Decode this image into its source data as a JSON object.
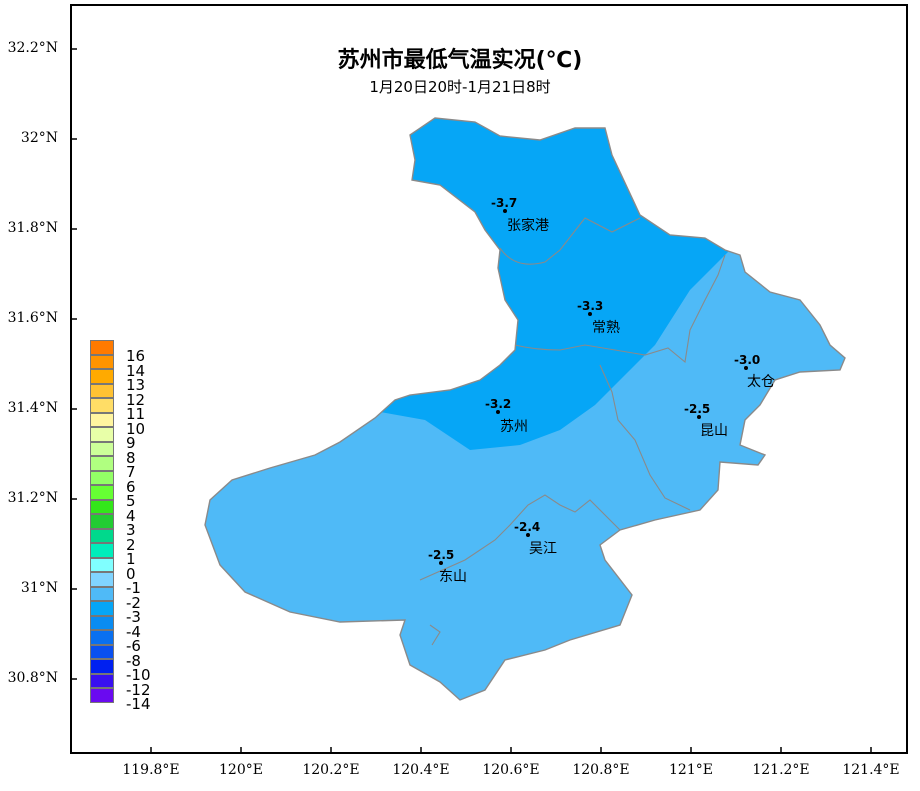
{
  "title": "苏州市最低气温实况(℃)",
  "subtitle": "1月20日20时-1月21日8时",
  "colors": {
    "zone_minus3": "#06A6F6",
    "zone_minus2": "#4FBAF7",
    "boundary": "#8a8a8a"
  },
  "lat_labels": [
    "32.2°N",
    "32°N",
    "31.8°N",
    "31.6°N",
    "31.4°N",
    "31.2°N",
    "31°N",
    "30.8°N"
  ],
  "lon_labels": [
    "119.8°E",
    "120°E",
    "120.2°E",
    "120.4°E",
    "120.6°E",
    "120.8°E",
    "121°E",
    "121.2°E",
    "121.4°E"
  ],
  "stations": [
    {
      "name": "张家港",
      "value": "-3.7"
    },
    {
      "name": "常熟",
      "value": "-3.3"
    },
    {
      "name": "太仓",
      "value": "-3.0"
    },
    {
      "name": "苏州",
      "value": "-3.2"
    },
    {
      "name": "昆山",
      "value": "-2.5"
    },
    {
      "name": "吴江",
      "value": "-2.4"
    },
    {
      "name": "东山",
      "value": "-2.5"
    }
  ],
  "legend": [
    {
      "label": "16",
      "color": "#FF7A00"
    },
    {
      "label": "14",
      "color": "#FF9400"
    },
    {
      "label": "13",
      "color": "#FFAA00"
    },
    {
      "label": "12",
      "color": "#FFC233"
    },
    {
      "label": "11",
      "color": "#FFDD66"
    },
    {
      "label": "10",
      "color": "#FFF5A0"
    },
    {
      "label": "9",
      "color": "#E8FFA8"
    },
    {
      "label": "8",
      "color": "#CCFF99"
    },
    {
      "label": "7",
      "color": "#B0FF80"
    },
    {
      "label": "6",
      "color": "#93FF66"
    },
    {
      "label": "5",
      "color": "#66FF33"
    },
    {
      "label": "4",
      "color": "#33E61A"
    },
    {
      "label": "3",
      "color": "#22CC33"
    },
    {
      "label": "2",
      "color": "#00D98C"
    },
    {
      "label": "1",
      "color": "#00EEBB"
    },
    {
      "label": "0",
      "color": "#80FFFF"
    },
    {
      "label": "-1",
      "color": "#80D4FF"
    },
    {
      "label": "-2",
      "color": "#4FBAF7"
    },
    {
      "label": "-3",
      "color": "#06A6F6"
    },
    {
      "label": "-4",
      "color": "#0A8CF2"
    },
    {
      "label": "-6",
      "color": "#0A70F0"
    },
    {
      "label": "-8",
      "color": "#0A50F0"
    },
    {
      "label": "-10",
      "color": "#0020F0"
    },
    {
      "label": "-12",
      "color": "#3810F0"
    },
    {
      "label": "-14",
      "color": "#6A0AF0"
    }
  ]
}
